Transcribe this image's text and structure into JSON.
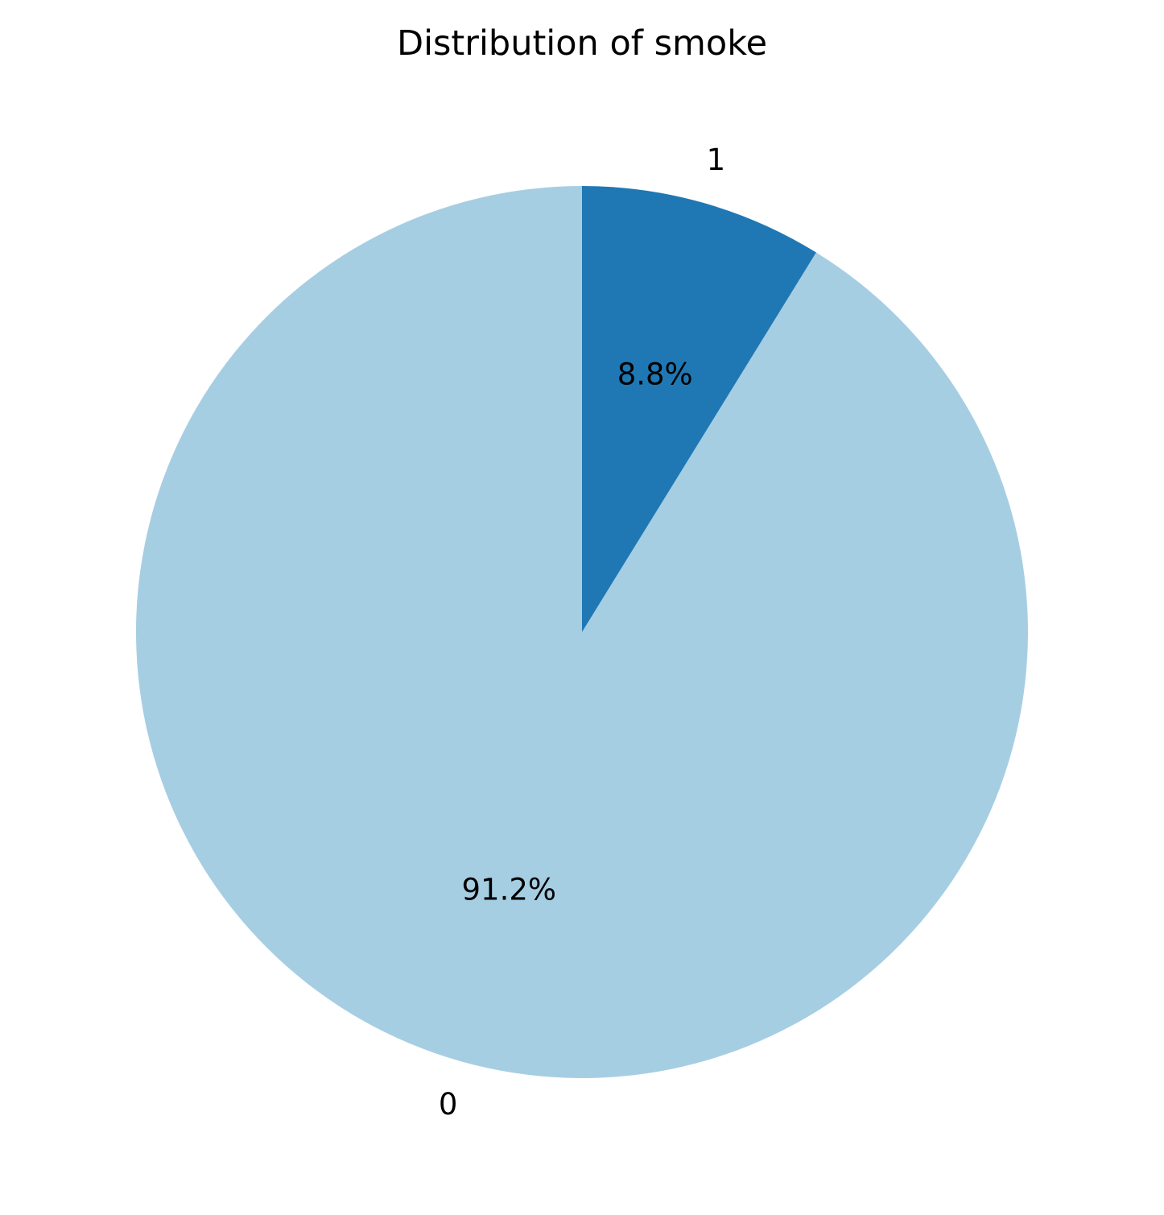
{
  "chart_data": {
    "type": "pie",
    "title": "Distribution of smoke",
    "categories": [
      "0",
      "1"
    ],
    "values": [
      91.2,
      8.8
    ],
    "value_labels": [
      "91.2%",
      "8.8%"
    ],
    "colors": [
      "#a6cee3",
      "#1f78b4"
    ],
    "start_angle_deg": 90,
    "direction": "clockwise-from-top: slice 1 first, then slice 0"
  }
}
